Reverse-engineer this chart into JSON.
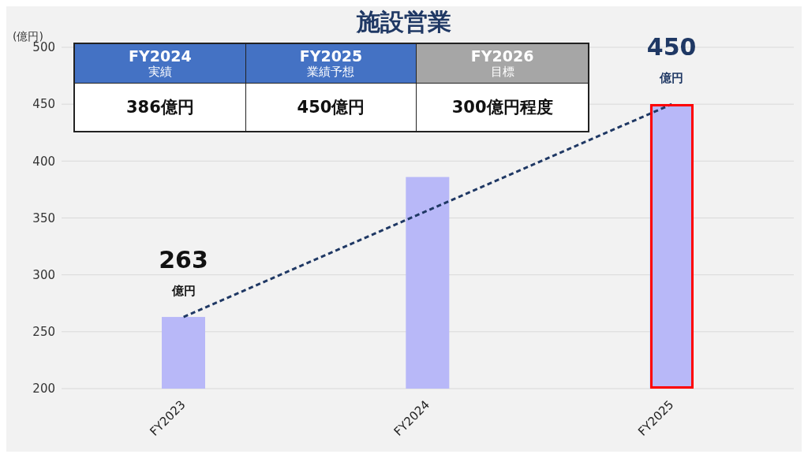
{
  "chart_data": {
    "type": "bar",
    "title": "施設営業",
    "ylabel": "(億円)",
    "categories": [
      "FY2023",
      "FY2024",
      "FY2025"
    ],
    "series": [
      {
        "color": "#b8b8f8",
        "values": [
          263,
          386,
          450
        ],
        "value_labels": [
          "263 億円",
          null,
          "450 億円"
        ]
      },
      {
        "type": "line",
        "color": "#1f3864",
        "x": [
          "FY2023",
          "FY2025"
        ],
        "values": [
          263,
          450
        ],
        "line_style": "dashed",
        "marker": "none"
      }
    ],
    "ylim": [
      200,
      500
    ],
    "yticks": [
      200,
      250,
      300,
      350,
      400,
      450,
      500
    ],
    "grid": "y",
    "legend": false,
    "annotations": [
      "FY2024",
      "FY2025",
      "FY2026",
      "実績",
      "業績予想",
      "目標",
      "386億円",
      "450億円",
      "300億円程度"
    ]
  }
}
